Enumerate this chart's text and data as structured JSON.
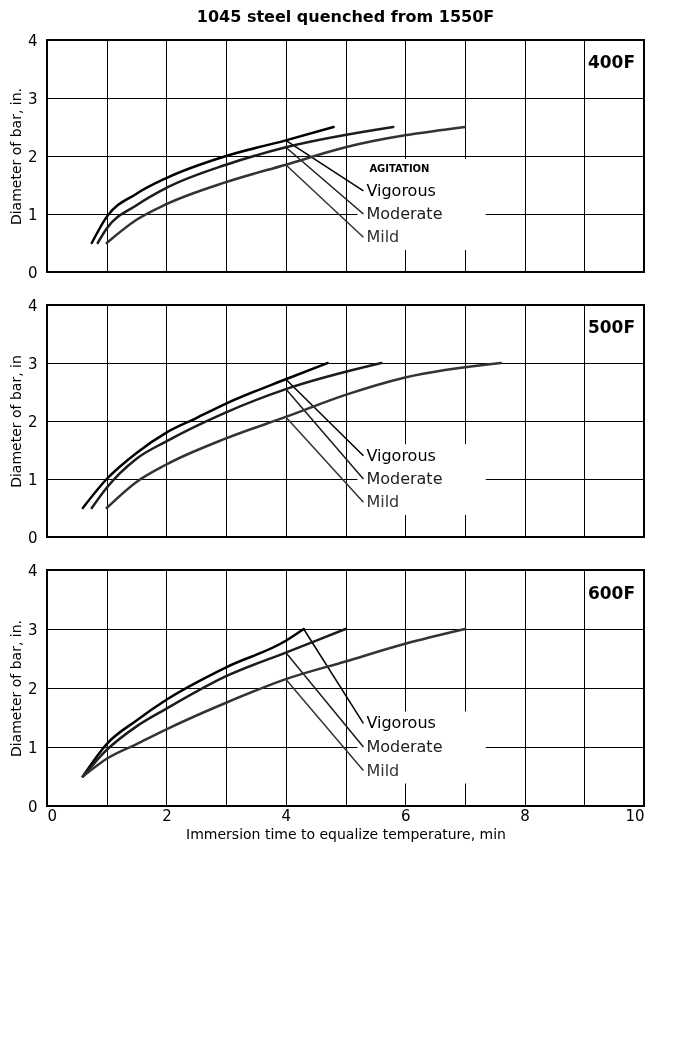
{
  "chart_data": [
    {
      "type": "line",
      "title": "1045 steel quenched from 1550F",
      "ylabel": "Diameter of bar, in.",
      "annotations": [
        "400F",
        "AGITATION"
      ],
      "xlim": [
        0,
        10
      ],
      "ylim": [
        0,
        4
      ],
      "xticks": [
        0,
        {
          "value": 1,
          "label": null
        },
        2,
        {
          "value": 3,
          "label": null
        },
        4,
        {
          "value": 5,
          "label": null
        },
        6,
        {
          "value": 7,
          "label": null
        },
        8,
        {
          "value": 9,
          "label": null
        },
        10
      ],
      "yticks": [
        0,
        1,
        2,
        3,
        4
      ],
      "grid": true,
      "tick_labels": "y",
      "series": [
        {
          "name": "Vigorous",
          "color": "#000000",
          "x": [
            0.75,
            1,
            1.5,
            2,
            3,
            4,
            4.8
          ],
          "values": [
            0.5,
            0.95,
            1.35,
            1.62,
            2.0,
            2.27,
            2.5
          ]
        },
        {
          "name": "Moderate",
          "color": "#1c1c1c",
          "x": [
            0.85,
            1,
            1.5,
            2,
            3,
            4,
            5.8
          ],
          "values": [
            0.5,
            0.75,
            1.15,
            1.45,
            1.85,
            2.15,
            2.5
          ]
        },
        {
          "name": "Mild",
          "color": "#333333",
          "x": [
            1,
            1.5,
            2,
            3,
            4,
            5,
            7
          ],
          "values": [
            0.5,
            0.9,
            1.17,
            1.55,
            1.85,
            2.15,
            2.5
          ]
        }
      ]
    },
    {
      "type": "line",
      "ylabel": "Diameter of bar, in",
      "annotations": [
        "500F"
      ],
      "xlim": [
        0,
        10
      ],
      "ylim": [
        0,
        4
      ],
      "xticks": [
        0,
        {
          "value": 1,
          "label": null
        },
        2,
        {
          "value": 3,
          "label": null
        },
        4,
        {
          "value": 5,
          "label": null
        },
        6,
        {
          "value": 7,
          "label": null
        },
        8,
        {
          "value": 9,
          "label": null
        },
        10
      ],
      "yticks": [
        0,
        1,
        2,
        3,
        4
      ],
      "grid": true,
      "tick_labels": "y",
      "series": [
        {
          "name": "Vigorous",
          "color": "#000000",
          "x": [
            0.6,
            1,
            1.5,
            2,
            2.5,
            3,
            4,
            4.7
          ],
          "values": [
            0.5,
            1.0,
            1.45,
            1.8,
            2.05,
            2.3,
            2.72,
            3.0
          ]
        },
        {
          "name": "Moderate",
          "color": "#1c1c1c",
          "x": [
            0.75,
            1,
            1.5,
            2,
            3,
            4,
            5.6
          ],
          "values": [
            0.5,
            0.85,
            1.35,
            1.65,
            2.15,
            2.55,
            3.0
          ]
        },
        {
          "name": "Mild",
          "color": "#333333",
          "x": [
            1,
            1.5,
            2,
            3,
            4,
            5,
            6,
            7.6
          ],
          "values": [
            0.5,
            0.95,
            1.25,
            1.7,
            2.07,
            2.45,
            2.75,
            3.0
          ]
        }
      ]
    },
    {
      "type": "line",
      "xlabel": "Immersion time to equalize temperature, min",
      "ylabel": "Diameter of bar, in.",
      "annotations": [
        "600F"
      ],
      "xlim": [
        0,
        10
      ],
      "ylim": [
        0,
        4
      ],
      "xticks": [
        0,
        {
          "value": 1,
          "label": null
        },
        2,
        {
          "value": 3,
          "label": null
        },
        4,
        {
          "value": 5,
          "label": null
        },
        6,
        {
          "value": 7,
          "label": null
        },
        8,
        {
          "value": 9,
          "label": null
        },
        10
      ],
      "yticks": [
        0,
        1,
        2,
        3,
        4
      ],
      "grid": true,
      "series": [
        {
          "name": "Vigorous",
          "color": "#000000",
          "x": [
            0.6,
            1,
            1.5,
            2,
            3,
            4,
            4.3
          ],
          "values": [
            0.5,
            1.05,
            1.45,
            1.8,
            2.35,
            2.8,
            3.0
          ]
        },
        {
          "name": "Moderate",
          "color": "#1c1c1c",
          "x": [
            0.6,
            1,
            1.5,
            2,
            3,
            4,
            5
          ],
          "values": [
            0.5,
            0.95,
            1.35,
            1.65,
            2.2,
            2.6,
            3.0
          ]
        },
        {
          "name": "Mild",
          "color": "#333333",
          "x": [
            0.6,
            1,
            1.5,
            2,
            3,
            4,
            5,
            6,
            7
          ],
          "values": [
            0.5,
            0.8,
            1.05,
            1.3,
            1.75,
            2.15,
            2.45,
            2.75,
            3.0
          ]
        }
      ]
    }
  ]
}
